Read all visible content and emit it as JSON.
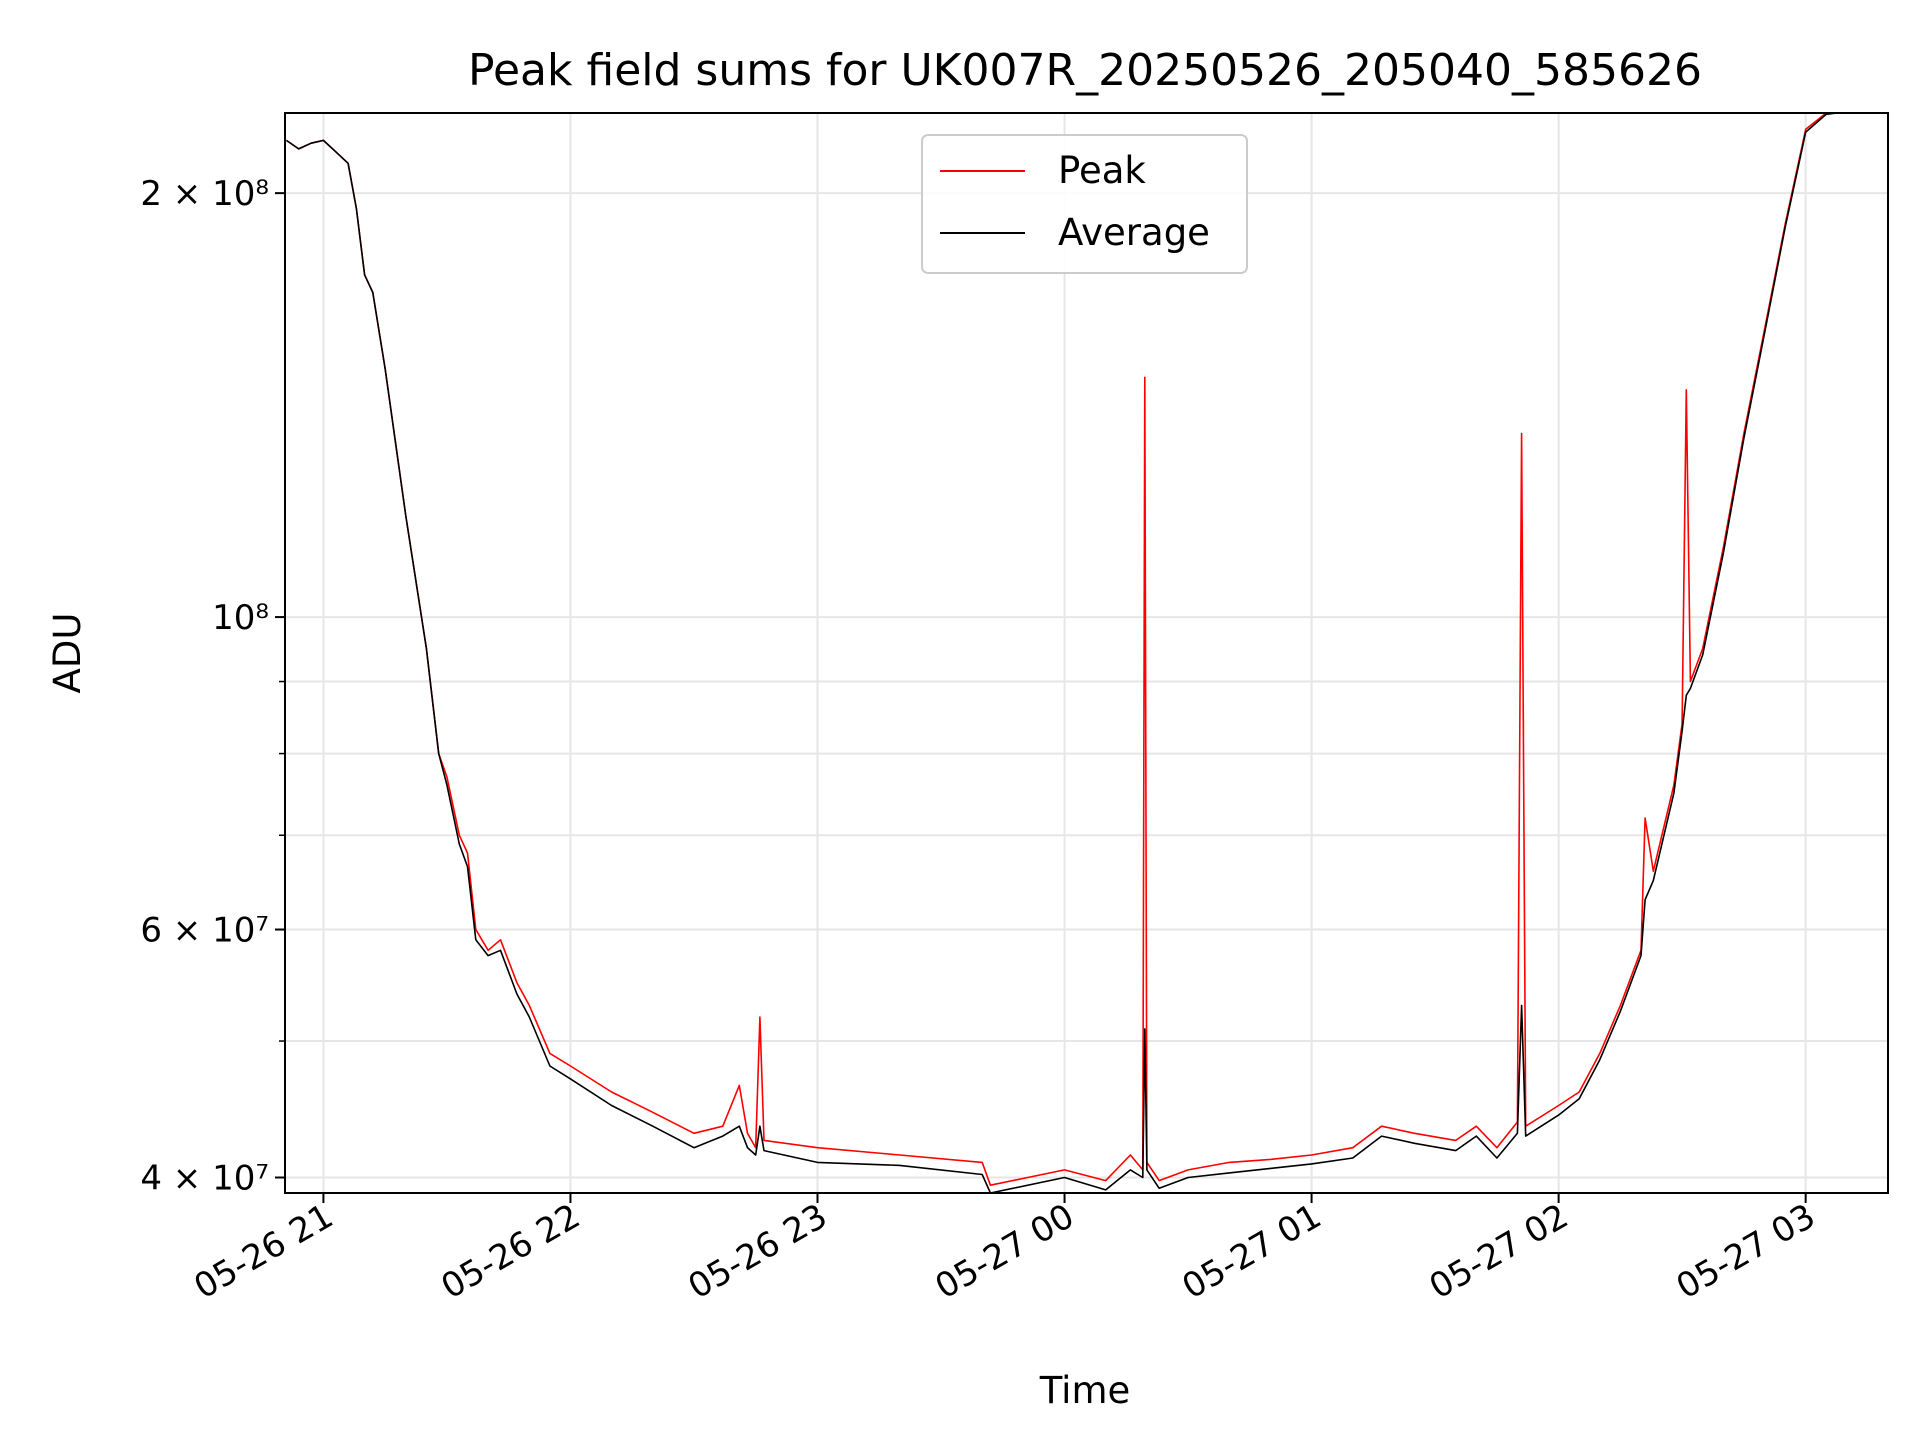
{
  "chart_data": {
    "type": "line",
    "title": "Peak field sums for UK007R_20250526_205040_585626",
    "xlabel": "Time",
    "ylabel": "ADU",
    "yscale": "log",
    "ylim": [
      39000000,
      228000000
    ],
    "xlim": [
      "2025-05-26 20:50:40",
      "2025-05-27 03:20:00"
    ],
    "grid": true,
    "legend_position": "upper center",
    "x_ticks": [
      {
        "x": "2025-05-26 21:00",
        "label": "05-26 21"
      },
      {
        "x": "2025-05-26 22:00",
        "label": "05-26 22"
      },
      {
        "x": "2025-05-26 23:00",
        "label": "05-26 23"
      },
      {
        "x": "2025-05-27 00:00",
        "label": "05-27 00"
      },
      {
        "x": "2025-05-27 01:00",
        "label": "05-27 01"
      },
      {
        "x": "2025-05-27 02:00",
        "label": "05-27 02"
      },
      {
        "x": "2025-05-27 03:00",
        "label": "05-27 03"
      }
    ],
    "y_major_ticks": [
      {
        "value": 40000000,
        "label": "4 × 10⁷"
      },
      {
        "value": 60000000,
        "label": "6 × 10⁷"
      },
      {
        "value": 100000000,
        "label": "10⁸"
      },
      {
        "value": 200000000,
        "label": "2 × 10⁸"
      }
    ],
    "y_minor_ticks": [
      50000000,
      70000000,
      80000000,
      90000000
    ],
    "series": [
      {
        "name": "Peak",
        "color": "#ff0000",
        "points": [
          [
            "2025-05-26 20:51",
            218000000
          ],
          [
            "2025-05-26 20:54",
            215000000
          ],
          [
            "2025-05-26 20:57",
            217000000
          ],
          [
            "2025-05-26 21:00",
            218000000
          ],
          [
            "2025-05-26 21:03",
            214000000
          ],
          [
            "2025-05-26 21:06",
            210000000
          ],
          [
            "2025-05-26 21:08",
            195000000
          ],
          [
            "2025-05-26 21:10",
            175000000
          ],
          [
            "2025-05-26 21:12",
            170000000
          ],
          [
            "2025-05-26 21:15",
            150000000
          ],
          [
            "2025-05-26 21:20",
            118000000
          ],
          [
            "2025-05-26 21:25",
            95000000
          ],
          [
            "2025-05-26 21:28",
            80000000
          ],
          [
            "2025-05-26 21:30",
            77000000
          ],
          [
            "2025-05-26 21:33",
            70000000
          ],
          [
            "2025-05-26 21:35",
            68000000
          ],
          [
            "2025-05-26 21:37",
            60000000
          ],
          [
            "2025-05-26 21:40",
            58000000
          ],
          [
            "2025-05-26 21:43",
            59000000
          ],
          [
            "2025-05-26 21:47",
            55000000
          ],
          [
            "2025-05-26 21:50",
            53000000
          ],
          [
            "2025-05-26 21:55",
            49000000
          ],
          [
            "2025-05-26 22:00",
            48000000
          ],
          [
            "2025-05-26 22:10",
            46000000
          ],
          [
            "2025-05-26 22:20",
            44500000
          ],
          [
            "2025-05-26 22:30",
            43000000
          ],
          [
            "2025-05-26 22:37",
            43500000
          ],
          [
            "2025-05-26 22:41",
            46500000
          ],
          [
            "2025-05-26 22:43",
            43000000
          ],
          [
            "2025-05-26 22:45",
            42000000
          ],
          [
            "2025-05-26 22:46",
            52000000
          ],
          [
            "2025-05-26 22:47",
            42500000
          ],
          [
            "2025-05-26 23:00",
            42000000
          ],
          [
            "2025-05-26 23:20",
            41500000
          ],
          [
            "2025-05-26 23:40",
            41000000
          ],
          [
            "2025-05-26 23:42",
            39500000
          ],
          [
            "2025-05-27 00:00",
            40500000
          ],
          [
            "2025-05-27 00:10",
            39800000
          ],
          [
            "2025-05-27 00:16",
            41500000
          ],
          [
            "2025-05-27 00:19",
            40500000
          ],
          [
            "2025-05-27 00:19:30",
            148000000
          ],
          [
            "2025-05-27 00:20",
            41000000
          ],
          [
            "2025-05-27 00:23",
            39800000
          ],
          [
            "2025-05-27 00:30",
            40500000
          ],
          [
            "2025-05-27 00:40",
            41000000
          ],
          [
            "2025-05-27 00:50",
            41200000
          ],
          [
            "2025-05-27 01:00",
            41500000
          ],
          [
            "2025-05-27 01:10",
            42000000
          ],
          [
            "2025-05-27 01:17",
            43500000
          ],
          [
            "2025-05-27 01:25",
            43000000
          ],
          [
            "2025-05-27 01:35",
            42500000
          ],
          [
            "2025-05-27 01:40",
            43500000
          ],
          [
            "2025-05-27 01:45",
            42000000
          ],
          [
            "2025-05-27 01:50",
            43800000
          ],
          [
            "2025-05-27 01:51",
            135000000
          ],
          [
            "2025-05-27 01:52",
            43500000
          ],
          [
            "2025-05-27 02:00",
            45000000
          ],
          [
            "2025-05-27 02:05",
            46000000
          ],
          [
            "2025-05-27 02:10",
            49000000
          ],
          [
            "2025-05-27 02:15",
            53000000
          ],
          [
            "2025-05-27 02:20",
            58000000
          ],
          [
            "2025-05-27 02:21",
            72000000
          ],
          [
            "2025-05-27 02:23",
            66000000
          ],
          [
            "2025-05-27 02:28",
            76000000
          ],
          [
            "2025-05-27 02:30",
            84000000
          ],
          [
            "2025-05-27 02:31",
            145000000
          ],
          [
            "2025-05-27 02:32",
            90000000
          ],
          [
            "2025-05-27 02:35",
            95000000
          ],
          [
            "2025-05-27 02:40",
            112000000
          ],
          [
            "2025-05-27 02:45",
            135000000
          ],
          [
            "2025-05-27 02:50",
            160000000
          ],
          [
            "2025-05-27 02:55",
            190000000
          ],
          [
            "2025-05-27 03:00",
            222000000
          ],
          [
            "2025-05-27 03:05",
            228000000
          ],
          [
            "2025-05-27 03:10",
            229000000
          ]
        ]
      },
      {
        "name": "Average",
        "color": "#000000",
        "points": [
          [
            "2025-05-26 20:51",
            218000000
          ],
          [
            "2025-05-26 20:54",
            215000000
          ],
          [
            "2025-05-26 20:57",
            217000000
          ],
          [
            "2025-05-26 21:00",
            218000000
          ],
          [
            "2025-05-26 21:03",
            214000000
          ],
          [
            "2025-05-26 21:06",
            210000000
          ],
          [
            "2025-05-26 21:08",
            195000000
          ],
          [
            "2025-05-26 21:10",
            175000000
          ],
          [
            "2025-05-26 21:12",
            170000000
          ],
          [
            "2025-05-26 21:15",
            150000000
          ],
          [
            "2025-05-26 21:20",
            118000000
          ],
          [
            "2025-05-26 21:25",
            95000000
          ],
          [
            "2025-05-26 21:28",
            80000000
          ],
          [
            "2025-05-26 21:30",
            76000000
          ],
          [
            "2025-05-26 21:33",
            69000000
          ],
          [
            "2025-05-26 21:35",
            66500000
          ],
          [
            "2025-05-26 21:37",
            59000000
          ],
          [
            "2025-05-26 21:40",
            57500000
          ],
          [
            "2025-05-26 21:43",
            58000000
          ],
          [
            "2025-05-26 21:47",
            54000000
          ],
          [
            "2025-05-26 21:50",
            52000000
          ],
          [
            "2025-05-26 21:55",
            48000000
          ],
          [
            "2025-05-26 22:00",
            47000000
          ],
          [
            "2025-05-26 22:10",
            45000000
          ],
          [
            "2025-05-26 22:20",
            43500000
          ],
          [
            "2025-05-26 22:30",
            42000000
          ],
          [
            "2025-05-26 22:37",
            42800000
          ],
          [
            "2025-05-26 22:41",
            43500000
          ],
          [
            "2025-05-26 22:43",
            42000000
          ],
          [
            "2025-05-26 22:45",
            41500000
          ],
          [
            "2025-05-26 22:46",
            43500000
          ],
          [
            "2025-05-26 22:47",
            41800000
          ],
          [
            "2025-05-26 23:00",
            41000000
          ],
          [
            "2025-05-26 23:20",
            40800000
          ],
          [
            "2025-05-26 23:40",
            40200000
          ],
          [
            "2025-05-26 23:42",
            39000000
          ],
          [
            "2025-05-27 00:00",
            40000000
          ],
          [
            "2025-05-27 00:10",
            39200000
          ],
          [
            "2025-05-27 00:16",
            40500000
          ],
          [
            "2025-05-27 00:19",
            40000000
          ],
          [
            "2025-05-27 00:19:30",
            51000000
          ],
          [
            "2025-05-27 00:20",
            40500000
          ],
          [
            "2025-05-27 00:23",
            39300000
          ],
          [
            "2025-05-27 00:30",
            40000000
          ],
          [
            "2025-05-27 00:40",
            40300000
          ],
          [
            "2025-05-27 00:50",
            40600000
          ],
          [
            "2025-05-27 01:00",
            40900000
          ],
          [
            "2025-05-27 01:10",
            41300000
          ],
          [
            "2025-05-27 01:17",
            42800000
          ],
          [
            "2025-05-27 01:25",
            42300000
          ],
          [
            "2025-05-27 01:35",
            41800000
          ],
          [
            "2025-05-27 01:40",
            42800000
          ],
          [
            "2025-05-27 01:45",
            41300000
          ],
          [
            "2025-05-27 01:50",
            43000000
          ],
          [
            "2025-05-27 01:51",
            53000000
          ],
          [
            "2025-05-27 01:52",
            42800000
          ],
          [
            "2025-05-27 02:00",
            44300000
          ],
          [
            "2025-05-27 02:05",
            45500000
          ],
          [
            "2025-05-27 02:10",
            48500000
          ],
          [
            "2025-05-27 02:15",
            52500000
          ],
          [
            "2025-05-27 02:20",
            57500000
          ],
          [
            "2025-05-27 02:21",
            63000000
          ],
          [
            "2025-05-27 02:23",
            65000000
          ],
          [
            "2025-05-27 02:28",
            75000000
          ],
          [
            "2025-05-27 02:30",
            83000000
          ],
          [
            "2025-05-27 02:31",
            88000000
          ],
          [
            "2025-05-27 02:32",
            89000000
          ],
          [
            "2025-05-27 02:35",
            94000000
          ],
          [
            "2025-05-27 02:40",
            111000000
          ],
          [
            "2025-05-27 02:45",
            134000000
          ],
          [
            "2025-05-27 02:50",
            159000000
          ],
          [
            "2025-05-27 02:55",
            189000000
          ],
          [
            "2025-05-27 03:00",
            221000000
          ],
          [
            "2025-05-27 03:05",
            227500000
          ],
          [
            "2025-05-27 03:10",
            228500000
          ]
        ]
      }
    ]
  }
}
